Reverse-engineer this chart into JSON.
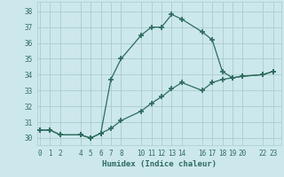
{
  "line1_x": [
    0,
    1,
    2,
    4,
    5,
    6,
    7,
    8,
    10,
    11,
    12,
    13,
    14,
    16,
    17,
    18,
    19,
    20,
    22,
    23
  ],
  "line1_y": [
    30.5,
    30.5,
    30.2,
    30.2,
    30.0,
    30.3,
    33.7,
    35.0,
    36.5,
    37.0,
    37.0,
    37.8,
    37.5,
    36.7,
    36.2,
    34.2,
    33.8,
    33.9,
    34.0,
    34.2
  ],
  "line2_x": [
    0,
    1,
    2,
    4,
    5,
    6,
    7,
    8,
    10,
    11,
    12,
    13,
    14,
    16,
    17,
    18,
    19,
    20,
    22,
    23
  ],
  "line2_y": [
    30.5,
    30.5,
    30.2,
    30.2,
    30.0,
    30.3,
    30.6,
    31.1,
    31.7,
    32.2,
    32.6,
    33.1,
    33.5,
    33.0,
    33.5,
    33.7,
    33.8,
    33.9,
    34.0,
    34.2
  ],
  "line_color": "#2e6b5e",
  "bg_color": "#cce8ec",
  "grid_color": "#aacccc",
  "xlabel": "Humidex (Indice chaleur)",
  "xticks": [
    0,
    1,
    2,
    4,
    5,
    6,
    7,
    8,
    10,
    11,
    12,
    13,
    14,
    16,
    17,
    18,
    19,
    20,
    22,
    23
  ],
  "yticks": [
    30,
    31,
    32,
    33,
    34,
    35,
    36,
    37,
    38
  ],
  "xlim": [
    -0.3,
    23.8
  ],
  "ylim": [
    29.55,
    38.6
  ],
  "marker": "+",
  "markersize": 4,
  "markeredgewidth": 1.2,
  "linewidth": 0.9,
  "tick_fontsize": 5.5,
  "xlabel_fontsize": 6.5
}
